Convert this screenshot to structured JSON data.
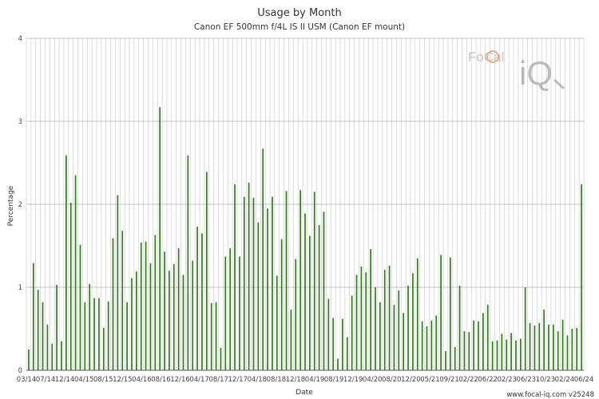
{
  "chart_data": {
    "type": "bar",
    "title": "Usage by Month",
    "subtitle": "Canon EF 500mm f/4L IS II USM (Canon EF mount)",
    "xlabel": "Date",
    "ylabel": "Percentage",
    "ylim": [
      0,
      4
    ],
    "y_ticks": [
      "0",
      "1",
      "2",
      "3",
      "4"
    ],
    "grid": true,
    "color": "#2e7d18",
    "x_tick_labels": [
      "03/14",
      "07/14",
      "12/14",
      "04/15",
      "08/15",
      "12/15",
      "04/16",
      "08/16",
      "12/16",
      "04/17",
      "08/17",
      "12/17",
      "04/18",
      "08/18",
      "12/18",
      "04/19",
      "08/19",
      "12/19",
      "04/20",
      "08/20",
      "12/20",
      "05/21",
      "09/21",
      "02/22",
      "06/22",
      "02/23",
      "06/23",
      "10/23",
      "02/24",
      "06/24"
    ],
    "values": [
      0.25,
      1.29,
      0.97,
      0.82,
      0.55,
      0.32,
      1.03,
      0.35,
      2.59,
      2.02,
      2.35,
      1.51,
      0.82,
      1.04,
      0.87,
      0.87,
      0.51,
      0.83,
      1.59,
      2.11,
      1.68,
      0.82,
      1.11,
      1.19,
      1.54,
      1.55,
      1.29,
      1.63,
      3.17,
      1.43,
      1.2,
      1.28,
      1.47,
      1.15,
      2.59,
      1.32,
      1.73,
      1.65,
      2.39,
      0.81,
      0.82,
      0.27,
      1.37,
      1.47,
      2.24,
      1.37,
      2.09,
      2.26,
      2.08,
      1.78,
      2.67,
      1.95,
      2.09,
      1.14,
      1.58,
      2.16,
      0.73,
      1.34,
      2.17,
      1.89,
      1.62,
      2.15,
      1.75,
      1.91,
      0.86,
      0.63,
      0.14,
      0.62,
      0.4,
      0.9,
      1.15,
      1.25,
      1.18,
      1.46,
      1.0,
      0.82,
      1.21,
      1.26,
      0.79,
      0.96,
      0.69,
      1.02,
      1.17,
      1.35,
      0.59,
      0.53,
      0.6,
      0.66,
      1.39,
      0.23,
      1.36,
      0.28,
      1.02,
      0.47,
      0.46,
      0.6,
      0.59,
      0.69,
      0.79,
      0.35,
      0.36,
      0.44,
      0.37,
      0.45,
      0.36,
      0.38,
      1.0,
      0.57,
      0.54,
      0.57,
      0.73,
      0.55,
      0.55,
      0.47,
      0.61,
      0.42,
      0.5,
      0.51,
      2.24
    ]
  },
  "watermark": {
    "brand": "FoCal",
    "suffix": "iQ"
  },
  "footer": {
    "credit": "www.focal-iq.com  v25248"
  }
}
